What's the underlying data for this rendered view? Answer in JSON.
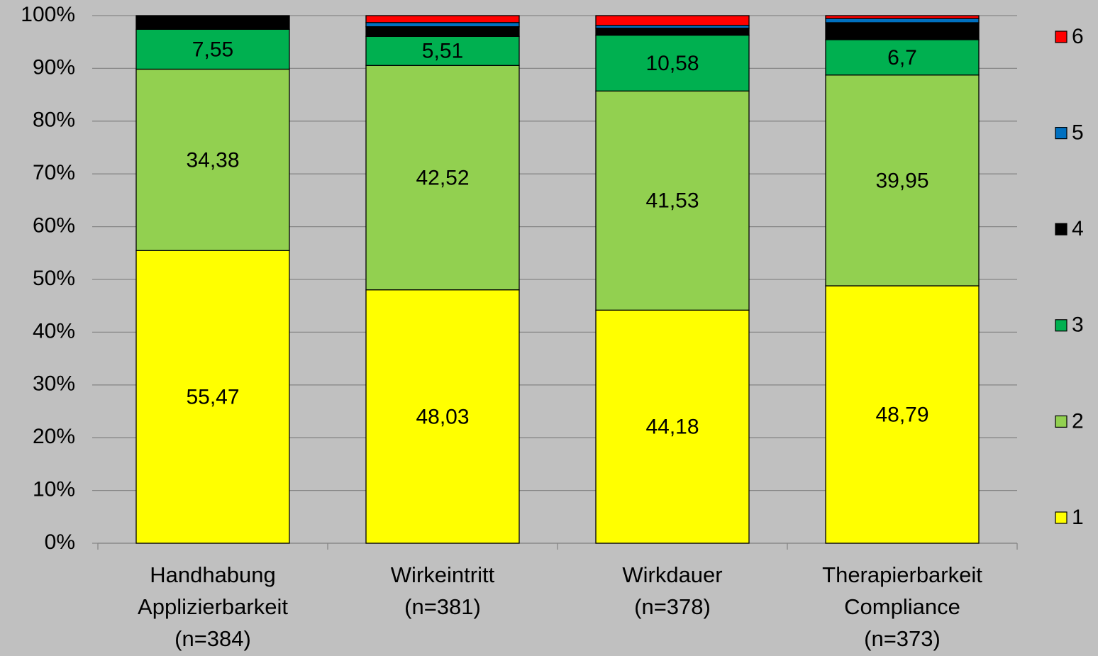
{
  "chart_data": {
    "type": "stacked_bar_100",
    "categories": [
      [
        "Handhabung",
        "Applizierbarkeit",
        "(n=384)"
      ],
      [
        "Wirkeintritt",
        "(n=381)"
      ],
      [
        "Wirkdauer",
        "(n=378)"
      ],
      [
        "Therapierbarkeit",
        "Compliance",
        "(n=373)"
      ]
    ],
    "series": [
      {
        "name": "1",
        "color": "#ffff00",
        "values": [
          55.47,
          48.03,
          44.18,
          48.79
        ],
        "value_labels": [
          "55,47",
          "48,03",
          "44,18",
          "48,79"
        ]
      },
      {
        "name": "2",
        "color": "#92d050",
        "values": [
          34.38,
          42.52,
          41.53,
          39.95
        ],
        "value_labels": [
          "34,38",
          "42,52",
          "41,53",
          "39,95"
        ]
      },
      {
        "name": "3",
        "color": "#00b050",
        "values": [
          7.55,
          5.51,
          10.58,
          6.7
        ],
        "value_labels": [
          "7,55",
          "5,51",
          "10,58",
          "6,7"
        ]
      },
      {
        "name": "4",
        "color": "#000000",
        "values": [
          2.6,
          1.84,
          1.33,
          3.22
        ]
      },
      {
        "name": "5",
        "color": "#0070c0",
        "values": [
          0,
          0.79,
          0.53,
          0.8
        ]
      },
      {
        "name": "6",
        "color": "#ff0000",
        "values": [
          0,
          1.31,
          1.85,
          0.54
        ]
      }
    ],
    "ylim": [
      0,
      100
    ],
    "yticks": [
      {
        "value": 0,
        "label": "0%"
      },
      {
        "value": 10,
        "label": "10%"
      },
      {
        "value": 20,
        "label": "20%"
      },
      {
        "value": 30,
        "label": "30%"
      },
      {
        "value": 40,
        "label": "40%"
      },
      {
        "value": 50,
        "label": "50%"
      },
      {
        "value": 60,
        "label": "60%"
      },
      {
        "value": 70,
        "label": "70%"
      },
      {
        "value": 80,
        "label": "80%"
      },
      {
        "value": 90,
        "label": "90%"
      },
      {
        "value": 100,
        "label": "100%"
      }
    ],
    "grid": true,
    "legend": "right"
  }
}
